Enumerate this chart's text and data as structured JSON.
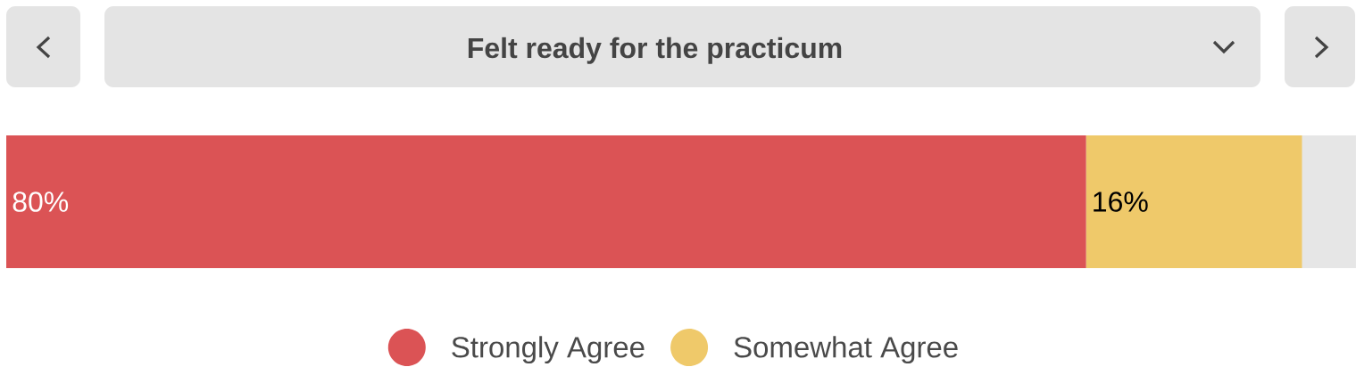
{
  "chart_data": {
    "type": "bar",
    "orientation": "horizontal",
    "stacked": true,
    "title": "Felt ready for the practicum",
    "categories": [
      null
    ],
    "xlim": [
      0,
      100
    ],
    "legend": "bottom",
    "series": [
      {
        "name": "Strongly Agree",
        "color": "#db5355",
        "values": [
          80
        ],
        "value_labels": [
          "80%"
        ]
      },
      {
        "name": "Somewhat Agree",
        "color": "#efc96a",
        "values": [
          16
        ],
        "value_labels": [
          "16%"
        ]
      }
    ],
    "bands": [
      {
        "axis": "x",
        "from": 0,
        "to": 100,
        "color": "#e6e6e6"
      }
    ]
  }
}
